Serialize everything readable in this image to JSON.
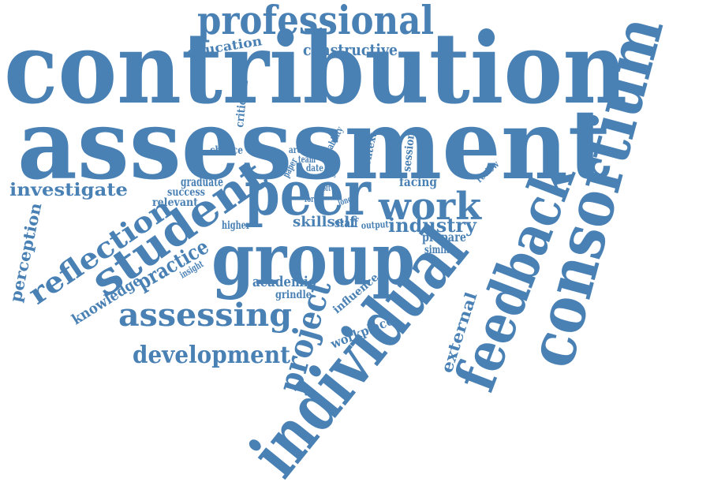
{
  "colors": {
    "word": "#4a81b5",
    "background": "#ffffff"
  },
  "words": [
    {
      "text": "contribution"
    },
    {
      "text": "assessment"
    },
    {
      "text": "individual"
    },
    {
      "text": "consortium"
    },
    {
      "text": "feedback"
    },
    {
      "text": "group"
    },
    {
      "text": "peer"
    },
    {
      "text": "student"
    },
    {
      "text": "professional"
    },
    {
      "text": "reflection"
    },
    {
      "text": "assessing"
    },
    {
      "text": "work"
    },
    {
      "text": "project"
    },
    {
      "text": "development"
    },
    {
      "text": "investigate"
    },
    {
      "text": "practice"
    },
    {
      "text": "industry"
    },
    {
      "text": "perception"
    },
    {
      "text": "knowledge"
    },
    {
      "text": "constructive"
    },
    {
      "text": "education"
    },
    {
      "text": "external"
    },
    {
      "text": "academic"
    },
    {
      "text": "graduate"
    },
    {
      "text": "workplace"
    },
    {
      "text": "facing"
    },
    {
      "text": "prepare"
    },
    {
      "text": "skillself"
    },
    {
      "text": "staff"
    },
    {
      "text": "relevant"
    },
    {
      "text": "success"
    },
    {
      "text": "chance"
    },
    {
      "text": "criticism"
    },
    {
      "text": "influence"
    },
    {
      "text": "grindle"
    },
    {
      "text": "similar"
    },
    {
      "text": "context"
    },
    {
      "text": "session"
    },
    {
      "text": "higher"
    },
    {
      "text": "output"
    },
    {
      "text": "review"
    },
    {
      "text": "insight"
    },
    {
      "text": "ability"
    },
    {
      "text": "paper"
    },
    {
      "text": "team"
    },
    {
      "text": "area"
    },
    {
      "text": "date"
    },
    {
      "text": "good"
    },
    {
      "text": "form"
    },
    {
      "text": "long"
    },
    {
      "text": "soft"
    }
  ]
}
